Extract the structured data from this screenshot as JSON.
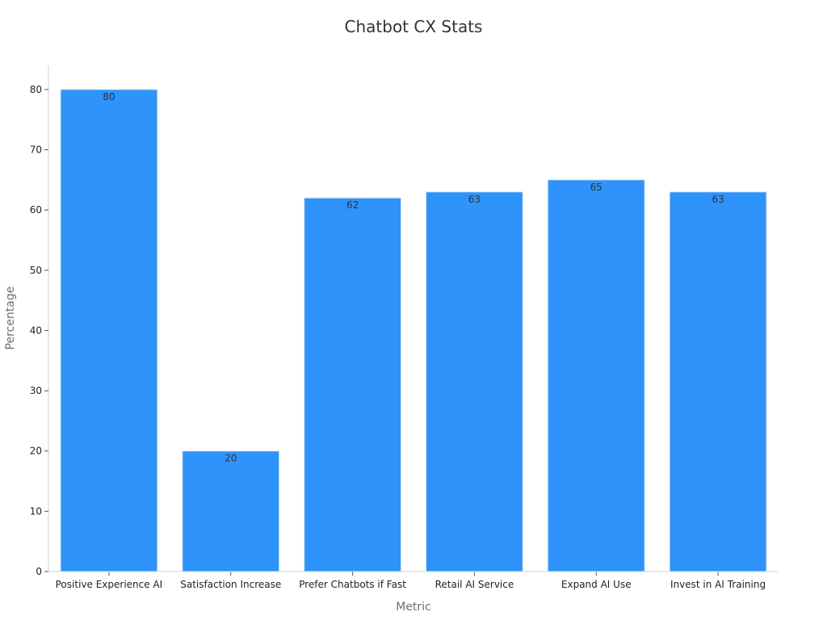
{
  "chart_data": {
    "type": "bar",
    "title": "Chatbot CX Stats",
    "xlabel": "Metric",
    "ylabel": "Percentage",
    "categories": [
      "Positive Experience AI",
      "Satisfaction Increase",
      "Prefer Chatbots if Fast",
      "Retail AI Service",
      "Expand AI Use",
      "Invest in AI Training"
    ],
    "values": [
      80,
      20,
      62,
      63,
      65,
      63
    ],
    "ylim": [
      0,
      84
    ],
    "yticks": [
      0,
      10,
      20,
      30,
      40,
      50,
      60,
      70,
      80
    ],
    "grid": false,
    "legend": "none",
    "data_labels": true,
    "bar_color": "#2e93fa",
    "bar_edge_color": "#d6e4f0",
    "axis_color": "#d0d0d0"
  }
}
